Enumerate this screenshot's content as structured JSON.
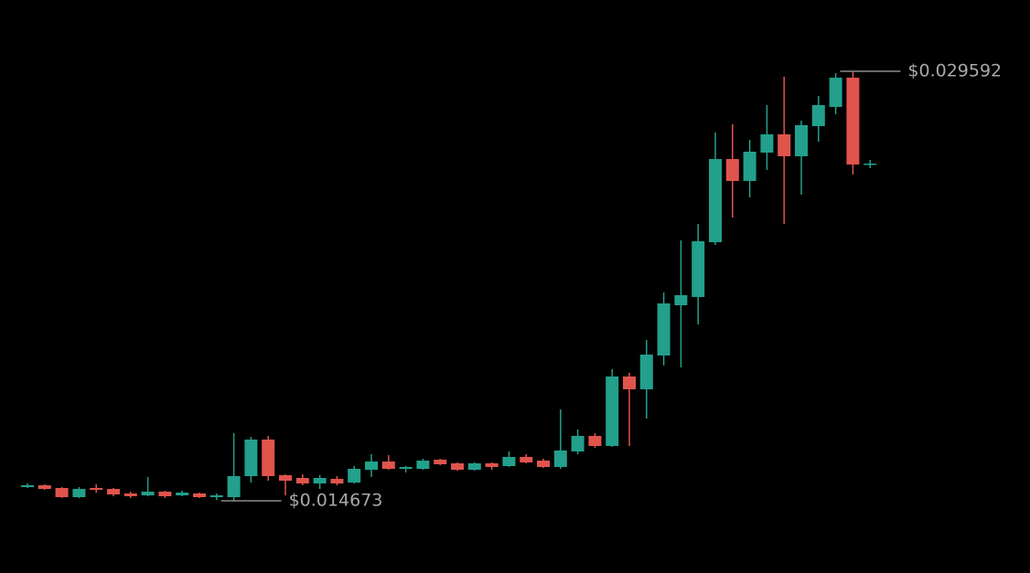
{
  "chart_data": {
    "type": "candlestick",
    "up_color": "#22a08c",
    "down_color": "#e0544c",
    "open": [
      0.015149,
      0.015212,
      0.015117,
      0.0148,
      0.015117,
      0.015085,
      0.014927,
      0.014863,
      0.01499,
      0.014863,
      0.014927,
      0.0148,
      0.0148,
      0.01553,
      0.0168,
      0.015562,
      0.015466,
      0.015276,
      0.015435,
      0.015308,
      0.015752,
      0.016038,
      0.015784,
      0.015784,
      0.016101,
      0.015974,
      0.015752,
      0.015974,
      0.015879,
      0.016197,
      0.01607,
      0.015847,
      0.016387,
      0.016927,
      0.016578,
      0.01899,
      0.018546,
      0.01972,
      0.021466,
      0.021752,
      0.023656,
      0.026545,
      0.025783,
      0.026767,
      0.027402,
      0.02664,
      0.027687,
      0.028354,
      0.02937,
      0.026354
    ],
    "high": [
      0.015276,
      0.015244,
      0.015149,
      0.015149,
      0.015244,
      0.015117,
      0.01499,
      0.015498,
      0.015022,
      0.015022,
      0.014958,
      0.014927,
      0.017022,
      0.016895,
      0.016927,
      0.015593,
      0.015593,
      0.015562,
      0.01553,
      0.015879,
      0.016292,
      0.01626,
      0.015879,
      0.016133,
      0.016133,
      0.016006,
      0.016006,
      0.016006,
      0.016387,
      0.016292,
      0.016133,
      0.017847,
      0.017149,
      0.017022,
      0.019244,
      0.019117,
      0.02026,
      0.02191,
      0.02372,
      0.024291,
      0.027465,
      0.027751,
      0.027211,
      0.028418,
      0.029402,
      0.027878,
      0.028735,
      0.029529,
      0.029592,
      0.026513
    ],
    "low": [
      0.015117,
      0.015054,
      0.014768,
      0.014768,
      0.014958,
      0.014832,
      0.014768,
      0.014832,
      0.014768,
      0.014832,
      0.014768,
      0.014705,
      0.014673,
      0.015308,
      0.015371,
      0.014863,
      0.015212,
      0.015085,
      0.015212,
      0.015276,
      0.015498,
      0.015752,
      0.015657,
      0.015752,
      0.015911,
      0.01572,
      0.01572,
      0.015752,
      0.015847,
      0.015974,
      0.015816,
      0.015784,
      0.016292,
      0.016514,
      0.016546,
      0.016578,
      0.01753,
      0.019371,
      0.019307,
      0.020799,
      0.023561,
      0.024513,
      0.025212,
      0.026164,
      0.024291,
      0.025307,
      0.027148,
      0.0281,
      0.026005,
      0.026227
    ],
    "close": [
      0.015212,
      0.015085,
      0.0148,
      0.015085,
      0.015054,
      0.014895,
      0.014832,
      0.01499,
      0.014832,
      0.014958,
      0.0148,
      0.014863,
      0.01553,
      0.0168,
      0.01553,
      0.015371,
      0.015276,
      0.015466,
      0.015276,
      0.015784,
      0.016038,
      0.015784,
      0.015847,
      0.01607,
      0.015943,
      0.015752,
      0.015974,
      0.015847,
      0.016197,
      0.016006,
      0.015847,
      0.016419,
      0.016927,
      0.016578,
      0.01899,
      0.018546,
      0.019752,
      0.021529,
      0.021815,
      0.023688,
      0.026545,
      0.025783,
      0.026799,
      0.027402,
      0.02664,
      0.027719,
      0.028418,
      0.02937,
      0.026354,
      0.026386
    ],
    "annotations": [
      {
        "value": 0.029592,
        "label": "$0.029592"
      },
      {
        "value": 0.014673,
        "label": "$0.014673"
      }
    ]
  }
}
